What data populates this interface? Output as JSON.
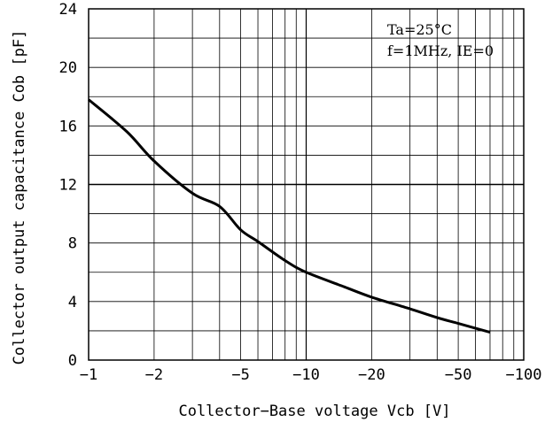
{
  "chart_data": {
    "type": "line",
    "title": "",
    "xlabel": "Collector−Base voltage Vcb [V]",
    "ylabel": "Collector output capacitance Cob [pF]",
    "x_scale": "log",
    "x_axis_values_reversed_sign": true,
    "xlim": [
      -1,
      -100
    ],
    "ylim": [
      0,
      24
    ],
    "x_ticks": [
      -1,
      -2,
      -5,
      -10,
      -20,
      -50,
      -100
    ],
    "x_tick_labels": [
      "−1",
      "−2",
      "−5",
      "−10",
      "−20",
      "−50",
      "−100"
    ],
    "y_ticks": [
      0,
      4,
      8,
      12,
      16,
      20,
      24
    ],
    "y_tick_labels": [
      "0",
      "4",
      "8",
      "12",
      "16",
      "20",
      "24"
    ],
    "grid": true,
    "annotation_lines": [
      "Ta=25°C",
      "f=1MHz, IE=0"
    ],
    "series": [
      {
        "x": [
          -1,
          -1.5,
          -2,
          -3,
          -4,
          -5,
          -6,
          -8,
          -10,
          -15,
          -20,
          -30,
          -40,
          -50,
          -70
        ],
        "y": [
          17.8,
          15.6,
          13.6,
          11.4,
          10.5,
          8.9,
          8.1,
          6.8,
          6.0,
          5.0,
          4.3,
          3.5,
          2.9,
          2.5,
          1.9
        ]
      }
    ],
    "colors": {
      "line": "#000000",
      "grid": "#000000",
      "background": "#ffffff"
    }
  }
}
